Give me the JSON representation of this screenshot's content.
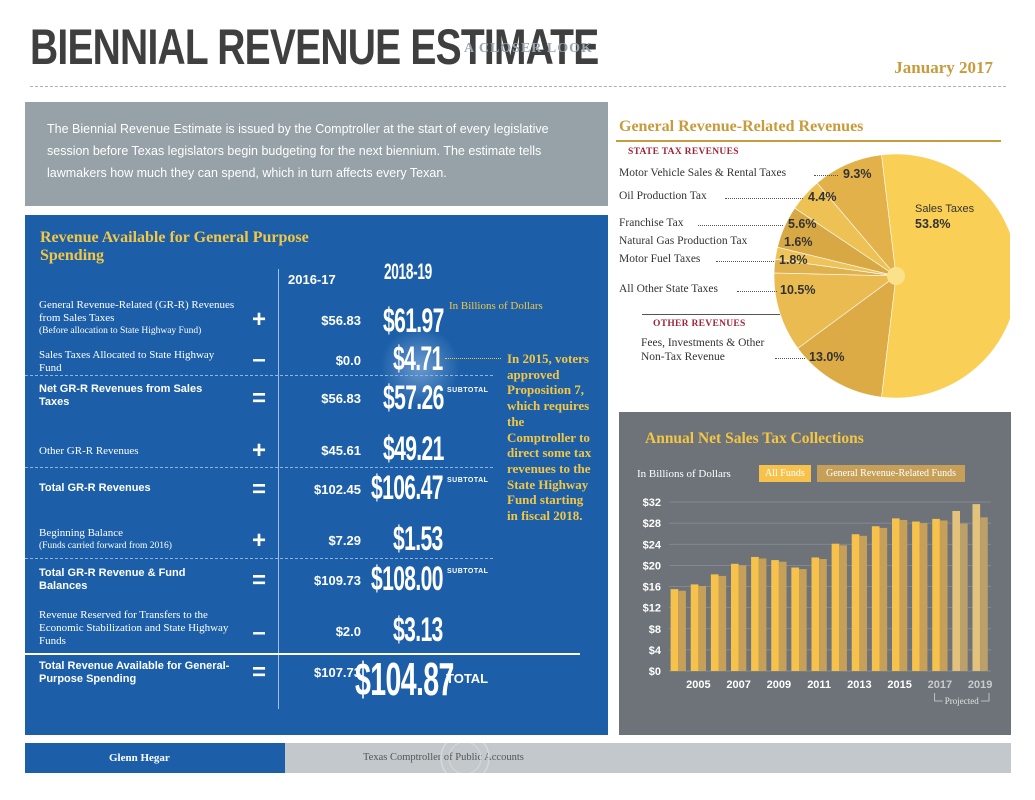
{
  "header": {
    "title": "BIENNIAL REVENUE ESTIMATE",
    "subtitle": "A CLOSER LOOK",
    "date": "January 2017"
  },
  "intro": {
    "text": "The Biennial Revenue Estimate is issued by the Comptroller at the start of every legislative session before Texas legislators begin budgeting for the next biennium. The estimate tells lawmakers how much they can spend, which in turn affects every Texan."
  },
  "revenue": {
    "title": "Revenue Available for General Purpose Spending",
    "col1": "2016-17",
    "col2": "2018-19",
    "unit_note": "In Billions of Dollars",
    "subtotal_tag": "SUBTOTAL",
    "total_tag": "TOTAL",
    "rows": [
      {
        "label": "General Revenue-Related (GR-R) Revenues from Sales Taxes",
        "note": "(Before allocation to State Highway Fund)",
        "op": "+",
        "v1": "$56.83",
        "v2": "$61.97"
      },
      {
        "label": "Sales Taxes Allocated to State Highway Fund",
        "note": "",
        "op": "–",
        "v1": "$0.0",
        "v2": "$4.71"
      },
      {
        "label": "Net GR-R Revenues from Sales Taxes",
        "note": "",
        "op": "=",
        "v1": "$56.83",
        "v2": "$57.26"
      },
      {
        "label": "Other GR-R Revenues",
        "note": "",
        "op": "+",
        "v1": "$45.61",
        "v2": "$49.21"
      },
      {
        "label": "Total GR-R Revenues",
        "note": "",
        "op": "=",
        "v1": "$102.45",
        "v2": "$106.47"
      },
      {
        "label": "Beginning Balance",
        "note": "(Funds carried forward from 2016)",
        "op": "+",
        "v1": "$7.29",
        "v2": "$1.53"
      },
      {
        "label": "Total GR-R Revenue & Fund Balances",
        "note": "",
        "op": "=",
        "v1": "$109.73",
        "v2": "$108.00"
      },
      {
        "label": "Revenue Reserved for Transfers to the Economic Stabilization and State Highway Funds",
        "note": "",
        "op": "–",
        "v1": "$2.0",
        "v2": "$3.13"
      },
      {
        "label": "Total Revenue Available for General-Purpose Spending",
        "note": "",
        "op": "=",
        "v1": "$107.73",
        "v2": "$104.87"
      }
    ],
    "callout": "In 2015, voters approved Proposition 7, which requires the Comptroller to direct some tax revenues to the State Highway Fund starting in fiscal 2018."
  },
  "pie": {
    "title": "General Revenue-Related Revenues",
    "state_head": "STATE TAX REVENUES",
    "other_head": "OTHER REVENUES",
    "slices": [
      {
        "name": "Sales Taxes",
        "pct": "53.8%",
        "value": 53.8,
        "color": "#f9cf55"
      },
      {
        "name": "Motor Vehicle Sales & Rental Taxes",
        "pct": "9.3%",
        "value": 9.3,
        "color": "#e2b14a"
      },
      {
        "name": "Oil Production Tax",
        "pct": "4.4%",
        "value": 4.4,
        "color": "#edc154"
      },
      {
        "name": "Franchise Tax",
        "pct": "5.6%",
        "value": 5.6,
        "color": "#d8a845"
      },
      {
        "name": "Natural Gas Production Tax",
        "pct": "1.6%",
        "value": 1.6,
        "color": "#eec45a"
      },
      {
        "name": "Motor Fuel Taxes",
        "pct": "1.8%",
        "value": 1.8,
        "color": "#e0b24d"
      },
      {
        "name": "All Other State Taxes",
        "pct": "10.5%",
        "value": 10.5,
        "color": "#eabb50"
      },
      {
        "name": "Fees, Investments & Other Non-Tax Revenue",
        "pct": "13.0%",
        "value": 13.0,
        "color": "#dcab46"
      }
    ]
  },
  "chart_data": {
    "type": "bar",
    "title": "Annual Net Sales Tax Collections",
    "ylabel": "In Billions of Dollars",
    "ylim": [
      0,
      32
    ],
    "y_ticks": [
      "$0",
      "$4",
      "$8",
      "$12",
      "$16",
      "$20",
      "$24",
      "$28",
      "$32"
    ],
    "x_tick_labels": [
      "2005",
      "2007",
      "2009",
      "2011",
      "2013",
      "2015",
      "2017",
      "2019"
    ],
    "projected_label": "Projected",
    "categories": [
      "2004",
      "2005",
      "2006",
      "2007",
      "2008",
      "2009",
      "2010",
      "2011",
      "2012",
      "2013",
      "2014",
      "2015",
      "2016",
      "2017",
      "2018",
      "2019"
    ],
    "series": [
      {
        "name": "All Funds",
        "color": "#f7c24b",
        "values": [
          15.5,
          16.4,
          18.3,
          20.3,
          21.6,
          21.0,
          19.6,
          21.5,
          24.1,
          25.9,
          27.4,
          28.9,
          28.3,
          28.8,
          30.3,
          31.6
        ]
      },
      {
        "name": "General Revenue-Related Funds",
        "color": "#c6a058",
        "values": [
          15.2,
          16.1,
          18.0,
          20.0,
          21.3,
          20.7,
          19.3,
          21.2,
          23.8,
          25.6,
          27.1,
          28.6,
          28.0,
          28.5,
          27.9,
          29.1
        ]
      }
    ],
    "grid": true,
    "legend": "top"
  },
  "footer": {
    "name": "Glenn Hegar",
    "org": "Texas Comptroller of Public Accounts"
  }
}
